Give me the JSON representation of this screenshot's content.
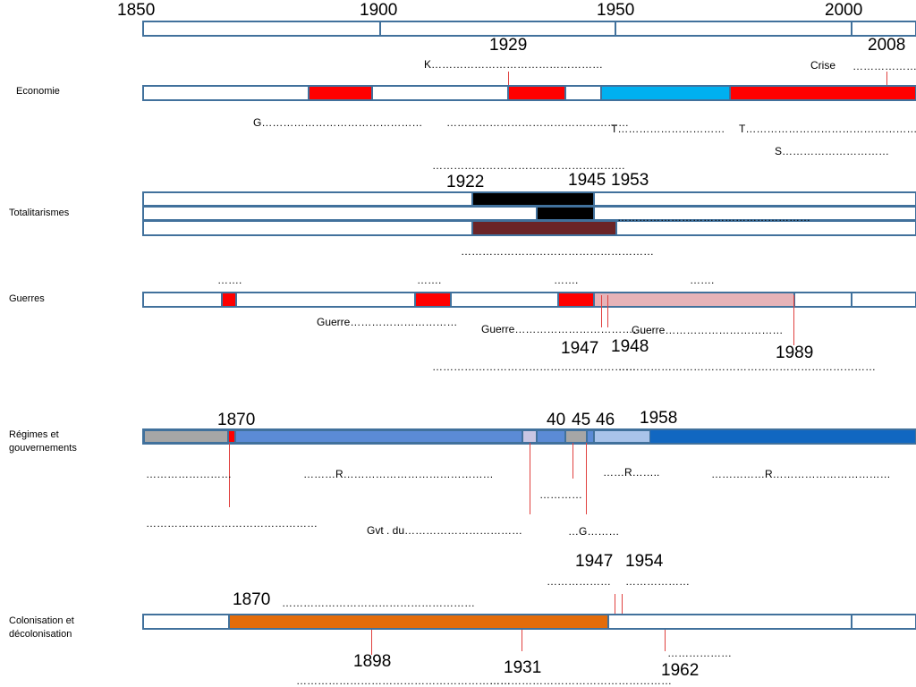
{
  "timeline": {
    "years": [
      "1850",
      "1900",
      "1950",
      "2000"
    ]
  },
  "colors": {
    "border": "#41719c",
    "red": "#ff0000",
    "cyan": "#00b0f0",
    "black": "#000000",
    "maroon": "#6b2427",
    "pink": "#e6b3b8",
    "grey": "#a6a6a6",
    "blue": "#5b8bd6",
    "lightblue": "#a9c3ea",
    "lavender": "#c9c6e3",
    "darkblue": "#1167c1",
    "orange": "#e36c0a",
    "tick": "#e0413f"
  },
  "economie": {
    "label": "Economie",
    "years": {
      "y1929": "1929",
      "y2008": "2008"
    },
    "texts": {
      "k": "K…………………………………………",
      "crise": "Crise",
      "crise_dots": "………………",
      "g": "G………………………………………",
      "mid": "……………………………………………",
      "t1": "T…………………………",
      "t2": "T……………………………………………",
      "s": "S…………………………",
      "below": "………………………………………………"
    }
  },
  "totalitarismes": {
    "label": "Totalitarismes",
    "years": {
      "y1922": "1922",
      "y1945": "1945",
      "y1953": "1953"
    },
    "texts": {
      "right": "………………………………………………",
      "below": "………………………………………………"
    }
  },
  "guerres": {
    "label": "Guerres",
    "years": {
      "y1947": "1947",
      "y1948": "1948",
      "y1989": "1989"
    },
    "texts": {
      "top1": "…….",
      "top2": "…….",
      "top3": "…….",
      "top4": "…….",
      "guerre1": "Guerre…………………………",
      "guerre2": "Guerre………………………………",
      "guerre3": "Guerre……………………………",
      "below1": "…………………………………………………",
      "below2": "………………………………………………………………"
    }
  },
  "regimes": {
    "label": "Régimes et gouvernements",
    "years": {
      "y1870": "1870",
      "y40": "40",
      "y45": "45",
      "y46": "46",
      "y1958": "1958"
    },
    "texts": {
      "d1": "……………………",
      "r1": "………R……………………………………",
      "d2": "…………",
      "r2": "……R……..",
      "r3": "……………R……………………………",
      "d3": "…………………………………………",
      "gvt": "Gvt . du……………………………",
      "g": "…G………"
    }
  },
  "colonisation": {
    "label": "Colonisation et décolonisation",
    "years": {
      "y1870": "1870",
      "y1947": "1947",
      "y1954": "1954",
      "y1898": "1898",
      "y1931": "1931",
      "y1962": "1962"
    },
    "texts": {
      "top": "………………………………………………",
      "d1947": "………………",
      "d1954": "………………",
      "d1962": "………………",
      "below1": "……………………………………………………",
      "below2": "……………………………………………"
    }
  }
}
